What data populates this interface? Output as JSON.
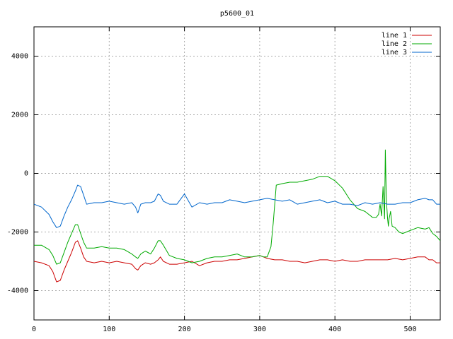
{
  "chart_data": {
    "type": "line",
    "title": "p5600_01",
    "xlabel": "",
    "ylabel": "",
    "xlim": [
      0,
      540
    ],
    "ylim": [
      -5000,
      5000
    ],
    "xticks": [
      "0",
      "100",
      "200",
      "300",
      "400",
      "500"
    ],
    "yticks": [
      "-4000",
      "-2000",
      "0",
      "2000",
      "4000"
    ],
    "grid": true,
    "legend_position": "top-right",
    "series": [
      {
        "name": "line 1",
        "color": "#cc0000",
        "x": [
          0,
          10,
          20,
          25,
          30,
          35,
          40,
          45,
          50,
          55,
          58,
          62,
          66,
          70,
          80,
          90,
          100,
          110,
          120,
          130,
          135,
          138,
          142,
          148,
          155,
          160,
          165,
          168,
          172,
          180,
          190,
          200,
          210,
          220,
          230,
          240,
          250,
          260,
          270,
          280,
          290,
          300,
          310,
          320,
          330,
          340,
          350,
          360,
          370,
          380,
          390,
          400,
          410,
          420,
          430,
          440,
          450,
          460,
          470,
          480,
          490,
          500,
          510,
          520,
          525,
          530,
          535,
          540
        ],
        "y": [
          -3000,
          -3050,
          -3150,
          -3350,
          -3700,
          -3650,
          -3300,
          -3000,
          -2700,
          -2350,
          -2300,
          -2550,
          -2850,
          -3000,
          -3050,
          -3000,
          -3050,
          -3000,
          -3050,
          -3100,
          -3250,
          -3300,
          -3150,
          -3050,
          -3100,
          -3050,
          -2950,
          -2850,
          -3000,
          -3100,
          -3100,
          -3050,
          -3000,
          -3150,
          -3050,
          -3000,
          -3000,
          -2950,
          -2950,
          -2900,
          -2850,
          -2800,
          -2900,
          -2950,
          -2950,
          -3000,
          -3000,
          -3050,
          -3000,
          -2950,
          -2950,
          -3000,
          -2950,
          -3000,
          -3000,
          -2950,
          -2950,
          -2950,
          -2950,
          -2900,
          -2950,
          -2900,
          -2850,
          -2850,
          -2950,
          -2950,
          -3050,
          -3050
        ]
      },
      {
        "name": "line 2",
        "color": "#00aa00",
        "x": [
          0,
          10,
          20,
          25,
          30,
          35,
          40,
          45,
          50,
          55,
          58,
          62,
          66,
          70,
          80,
          90,
          100,
          110,
          120,
          130,
          135,
          138,
          142,
          148,
          155,
          160,
          165,
          168,
          172,
          180,
          190,
          200,
          210,
          220,
          230,
          240,
          250,
          260,
          270,
          280,
          290,
          300,
          305,
          310,
          315,
          318,
          322,
          330,
          340,
          350,
          360,
          370,
          380,
          390,
          400,
          410,
          420,
          430,
          440,
          450,
          455,
          458,
          460,
          462,
          464,
          466,
          467,
          468,
          469,
          470,
          471,
          472,
          474,
          476,
          480,
          485,
          490,
          500,
          510,
          520,
          525,
          530,
          535,
          540
        ],
        "y": [
          -2450,
          -2450,
          -2600,
          -2800,
          -3100,
          -3050,
          -2700,
          -2350,
          -2050,
          -1750,
          -1750,
          -2050,
          -2350,
          -2550,
          -2550,
          -2500,
          -2550,
          -2550,
          -2600,
          -2750,
          -2850,
          -2900,
          -2750,
          -2650,
          -2750,
          -2550,
          -2300,
          -2300,
          -2450,
          -2800,
          -2900,
          -2950,
          -3050,
          -3000,
          -2900,
          -2850,
          -2850,
          -2800,
          -2750,
          -2850,
          -2850,
          -2800,
          -2850,
          -2850,
          -2500,
          -1700,
          -400,
          -350,
          -300,
          -300,
          -250,
          -200,
          -100,
          -100,
          -250,
          -500,
          -900,
          -1200,
          -1300,
          -1500,
          -1500,
          -1400,
          -1050,
          -1450,
          -450,
          -1550,
          800,
          -500,
          -1150,
          -1550,
          -1800,
          -1550,
          -1300,
          -1800,
          -1850,
          -2000,
          -2050,
          -1950,
          -1850,
          -1900,
          -1850,
          -2050,
          -2150,
          -2300
        ]
      },
      {
        "name": "line 3",
        "color": "#0066cc",
        "x": [
          0,
          10,
          20,
          25,
          30,
          35,
          40,
          45,
          50,
          55,
          58,
          62,
          66,
          70,
          80,
          90,
          100,
          110,
          120,
          130,
          135,
          138,
          142,
          148,
          155,
          160,
          165,
          168,
          172,
          180,
          190,
          200,
          210,
          220,
          230,
          240,
          250,
          260,
          270,
          280,
          290,
          300,
          310,
          320,
          330,
          340,
          350,
          360,
          370,
          380,
          390,
          400,
          410,
          420,
          430,
          440,
          450,
          460,
          470,
          480,
          490,
          500,
          510,
          520,
          525,
          530,
          535,
          540
        ],
        "y": [
          -1050,
          -1150,
          -1400,
          -1650,
          -1850,
          -1800,
          -1450,
          -1150,
          -900,
          -600,
          -400,
          -450,
          -750,
          -1050,
          -1000,
          -1000,
          -950,
          -1000,
          -1050,
          -1000,
          -1150,
          -1350,
          -1050,
          -1000,
          -1000,
          -950,
          -700,
          -750,
          -950,
          -1050,
          -1050,
          -700,
          -1150,
          -1000,
          -1050,
          -1000,
          -1000,
          -900,
          -950,
          -1000,
          -950,
          -900,
          -850,
          -900,
          -950,
          -900,
          -1050,
          -1000,
          -950,
          -900,
          -1000,
          -950,
          -1050,
          -1050,
          -1100,
          -1000,
          -1050,
          -1000,
          -1050,
          -1050,
          -1000,
          -1000,
          -900,
          -850,
          -900,
          -900,
          -1050,
          -1050
        ]
      }
    ]
  }
}
